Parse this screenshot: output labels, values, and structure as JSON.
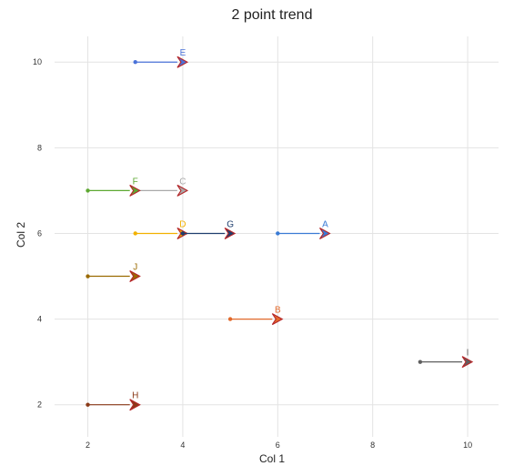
{
  "chart_data": {
    "type": "scatter",
    "title": "2 point trend",
    "xlabel": "Col 1",
    "ylabel": "Col 2",
    "xlim": [
      1.3,
      10.65
    ],
    "ylim": [
      1.25,
      10.6
    ],
    "xticks": [
      2,
      4,
      6,
      8,
      10
    ],
    "yticks": [
      2,
      4,
      6,
      8,
      10
    ],
    "grid": true,
    "legend": "none",
    "series": [
      {
        "name": "A",
        "x0": 6,
        "y0": 6,
        "x1": 7,
        "y1": 6,
        "color": "#3a7bd5"
      },
      {
        "name": "B",
        "x0": 5,
        "y0": 4,
        "x1": 6,
        "y1": 4,
        "color": "#e2692b"
      },
      {
        "name": "C",
        "x0": 3,
        "y0": 7,
        "x1": 4,
        "y1": 7,
        "color": "#a9a9a9"
      },
      {
        "name": "D",
        "x0": 3,
        "y0": 6,
        "x1": 4,
        "y1": 6,
        "color": "#f2b100"
      },
      {
        "name": "E",
        "x0": 3,
        "y0": 10,
        "x1": 4,
        "y1": 10,
        "color": "#4a72d9"
      },
      {
        "name": "F",
        "x0": 2,
        "y0": 7,
        "x1": 3,
        "y1": 7,
        "color": "#5da832"
      },
      {
        "name": "G",
        "x0": 4,
        "y0": 6,
        "x1": 5,
        "y1": 6,
        "color": "#1f3f6e"
      },
      {
        "name": "H",
        "x0": 2,
        "y0": 2,
        "x1": 3,
        "y1": 2,
        "color": "#8a3a18"
      },
      {
        "name": "I",
        "x0": 9,
        "y0": 3,
        "x1": 10,
        "y1": 3,
        "color": "#5f5f5f"
      },
      {
        "name": "J",
        "x0": 2,
        "y0": 5,
        "x1": 3,
        "y1": 5,
        "color": "#9a6a00"
      }
    ]
  }
}
